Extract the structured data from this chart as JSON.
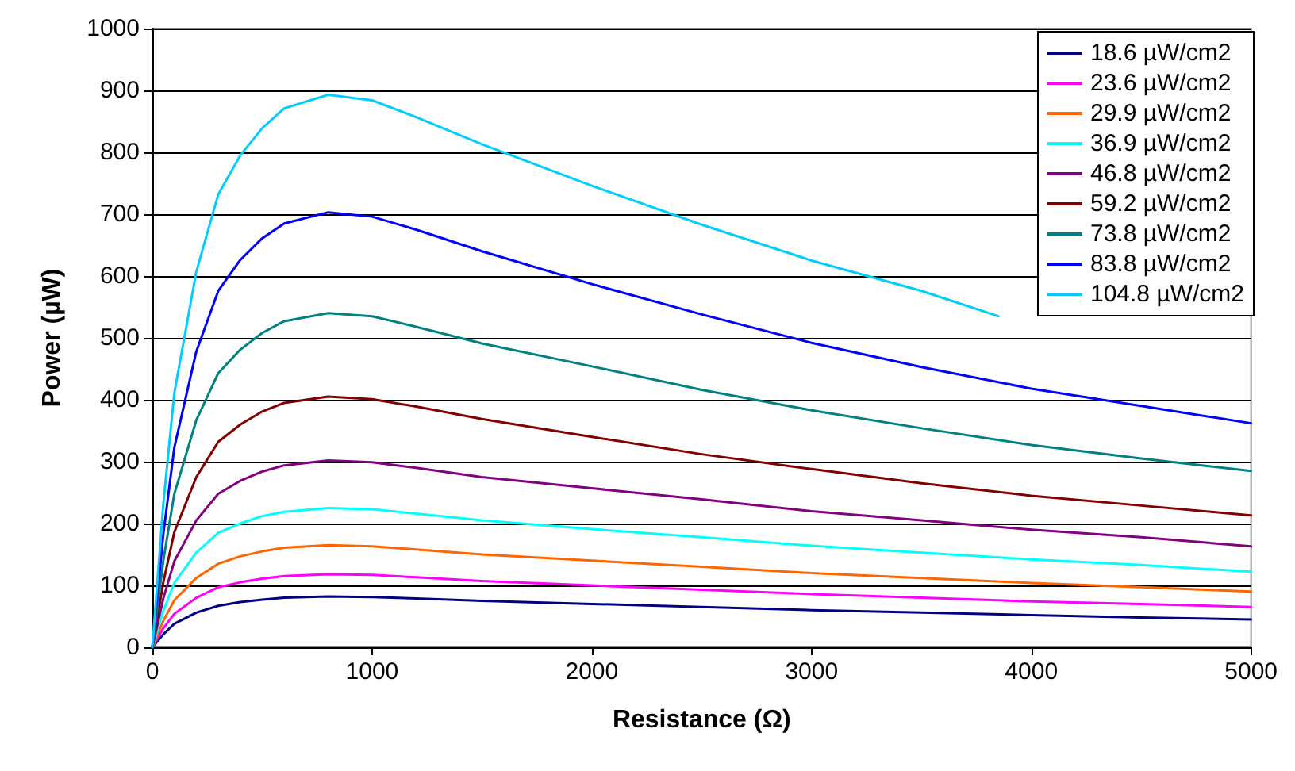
{
  "chart_data": {
    "type": "line",
    "xlabel": "Resistance (Ω)",
    "ylabel": "Power (µW)",
    "x": [
      0,
      50,
      100,
      200,
      300,
      400,
      500,
      600,
      800,
      1000,
      1200,
      1500,
      2000,
      2500,
      3000,
      3500,
      4000,
      4500,
      5000
    ],
    "series": [
      {
        "name": "18.6 µW/cm2",
        "color": "#000080",
        "values": [
          0,
          21,
          38,
          56,
          67,
          73,
          77,
          80,
          82,
          81,
          79,
          75,
          70,
          65,
          60,
          56,
          52,
          48,
          45
        ]
      },
      {
        "name": "23.6 µW/cm2",
        "color": "#ff00ff",
        "values": [
          0,
          31,
          54,
          80,
          97,
          105,
          111,
          115,
          118,
          117,
          113,
          107,
          100,
          93,
          86,
          80,
          74,
          70,
          65
        ]
      },
      {
        "name": "29.9 µW/cm2",
        "color": "#ff6600",
        "values": [
          0,
          43,
          76,
          112,
          135,
          147,
          155,
          161,
          165,
          163,
          158,
          150,
          140,
          130,
          120,
          112,
          104,
          97,
          90
        ]
      },
      {
        "name": "36.9 µW/cm2",
        "color": "#00ffff",
        "values": [
          0,
          59,
          104,
          153,
          185,
          200,
          212,
          219,
          225,
          223,
          216,
          205,
          191,
          178,
          164,
          153,
          142,
          133,
          122
        ]
      },
      {
        "name": "46.8 µW/cm2",
        "color": "#800080",
        "values": [
          0,
          79,
          139,
          205,
          248,
          269,
          284,
          294,
          302,
          299,
          290,
          275,
          257,
          239,
          220,
          205,
          190,
          178,
          163
        ]
      },
      {
        "name": "59.2 µW/cm2",
        "color": "#800000",
        "values": [
          0,
          105,
          186,
          275,
          332,
          360,
          381,
          395,
          405,
          401,
          389,
          369,
          340,
          312,
          288,
          265,
          245,
          229,
          213
        ]
      },
      {
        "name": "73.8 µW/cm2",
        "color": "#008080",
        "values": [
          0,
          140,
          248,
          367,
          443,
          481,
          508,
          527,
          540,
          535,
          518,
          491,
          454,
          416,
          383,
          354,
          327,
          305,
          285
        ]
      },
      {
        "name": "83.8 µW/cm2",
        "color": "#0000ff",
        "values": [
          0,
          183,
          323,
          478,
          576,
          626,
          661,
          685,
          703,
          696,
          675,
          640,
          587,
          538,
          492,
          453,
          418,
          390,
          362
        ]
      },
      {
        "name": "104.8 µW/cm2",
        "color": "#00ccff",
        "x": [
          0,
          50,
          100,
          200,
          300,
          400,
          500,
          600,
          800,
          1000,
          1200,
          1500,
          2000,
          2500,
          3000,
          3500,
          3850
        ],
        "values": [
          0,
          232,
          411,
          607,
          732,
          795,
          839,
          871,
          893,
          884,
          857,
          813,
          746,
          683,
          625,
          576,
          535
        ]
      }
    ],
    "xlim": [
      0,
      5000
    ],
    "xticks": [
      0,
      1000,
      2000,
      3000,
      4000,
      5000
    ],
    "ylim": [
      0,
      1000
    ],
    "yticks": [
      0,
      100,
      200,
      300,
      400,
      500,
      600,
      700,
      800,
      900,
      1000
    ],
    "grid": "y",
    "legend": "top right",
    "marker": "none",
    "line_style": "solid"
  }
}
